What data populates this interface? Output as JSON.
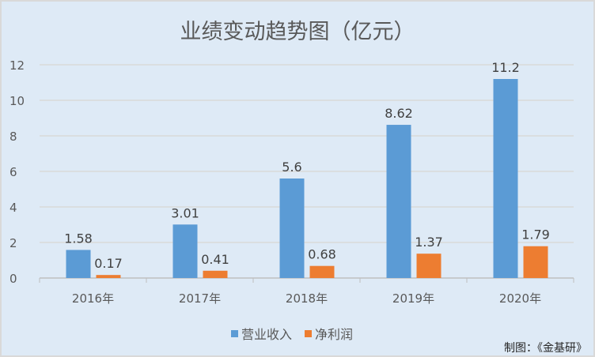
{
  "chart_data": {
    "type": "bar",
    "title": "业绩变动趋势图（亿元）",
    "categories": [
      "2016年",
      "2017年",
      "2018年",
      "2019年",
      "2020年"
    ],
    "series": [
      {
        "name": "营业收入",
        "color": "#5b9bd5",
        "values": [
          1.58,
          3.01,
          5.6,
          8.62,
          11.2
        ],
        "labels": [
          "1.58",
          "3.01",
          "5.6",
          "8.62",
          "11.2"
        ]
      },
      {
        "name": "净利润",
        "color": "#ed7d31",
        "values": [
          0.17,
          0.41,
          0.68,
          1.37,
          1.79
        ],
        "labels": [
          "0.17",
          "0.41",
          "0.68",
          "1.37",
          "1.79"
        ]
      }
    ],
    "ylim": [
      0,
      12
    ],
    "yticks": [
      "0",
      "2",
      "4",
      "6",
      "8",
      "10",
      "12"
    ],
    "grid": true,
    "legend": "bottom",
    "xlabel": "",
    "ylabel": ""
  },
  "credit": "制图：《金基研》"
}
